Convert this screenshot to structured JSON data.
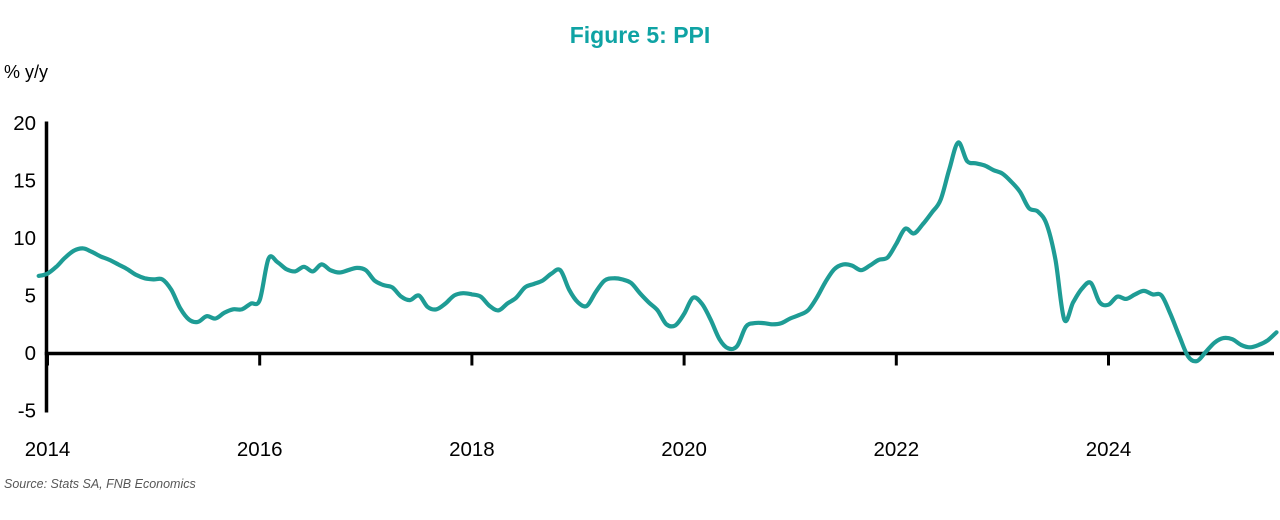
{
  "title": "Figure 5: PPI",
  "y_axis_unit": "% y/y",
  "source": "Source: Stats SA, FNB Economics",
  "colors": {
    "title": "#0FA3A4",
    "line": "#1E9C95",
    "axis": "#000000",
    "source_text": "#575757"
  },
  "chart_data": {
    "type": "line",
    "title": "Figure 5: PPI",
    "xlabel": "",
    "ylabel": "% y/y",
    "grid": false,
    "legend": "none",
    "ylim": [
      -5,
      20
    ],
    "y_ticks": [
      20,
      15,
      10,
      5,
      0,
      -5
    ],
    "x_ticks": [
      2014,
      2016,
      2018,
      2020,
      2022,
      2024
    ],
    "x_range": [
      "2013-12",
      "2025-08"
    ],
    "series": [
      {
        "name": "PPI (% y/y)",
        "frequency": "monthly",
        "start": "2013-12",
        "values": [
          6.7,
          6.9,
          7.5,
          8.3,
          8.9,
          9.1,
          8.8,
          8.4,
          8.1,
          7.7,
          7.3,
          6.8,
          6.5,
          6.4,
          6.4,
          5.5,
          3.9,
          2.9,
          2.7,
          3.2,
          3.0,
          3.5,
          3.8,
          3.8,
          4.3,
          4.6,
          8.2,
          7.9,
          7.3,
          7.1,
          7.5,
          7.1,
          7.7,
          7.2,
          7.0,
          7.2,
          7.4,
          7.2,
          6.3,
          5.9,
          5.7,
          4.9,
          4.6,
          5.0,
          4.0,
          3.8,
          4.3,
          5.0,
          5.2,
          5.1,
          4.9,
          4.1,
          3.7,
          4.3,
          4.8,
          5.7,
          6.0,
          6.3,
          6.9,
          7.2,
          5.5,
          4.4,
          4.1,
          5.3,
          6.3,
          6.5,
          6.4,
          6.1,
          5.2,
          4.4,
          3.7,
          2.5,
          2.4,
          3.4,
          4.8,
          4.3,
          2.9,
          1.2,
          0.4,
          0.6,
          2.3,
          2.6,
          2.6,
          2.5,
          2.6,
          3.0,
          3.3,
          3.7,
          4.8,
          6.2,
          7.3,
          7.7,
          7.6,
          7.2,
          7.6,
          8.1,
          8.3,
          9.5,
          10.8,
          10.4,
          11.2,
          12.2,
          13.3,
          16.0,
          18.3,
          16.7,
          16.5,
          16.3,
          15.9,
          15.6,
          14.9,
          14.0,
          12.6,
          12.3,
          11.2,
          8.1,
          2.9,
          4.4,
          5.6,
          6.1,
          4.4,
          4.2,
          4.9,
          4.7,
          5.1,
          5.4,
          5.1,
          5.0,
          3.4,
          1.5,
          -0.3,
          -0.7,
          0.1,
          0.9,
          1.3,
          1.2,
          0.7,
          0.5,
          0.7,
          1.1,
          1.8
        ]
      }
    ]
  }
}
